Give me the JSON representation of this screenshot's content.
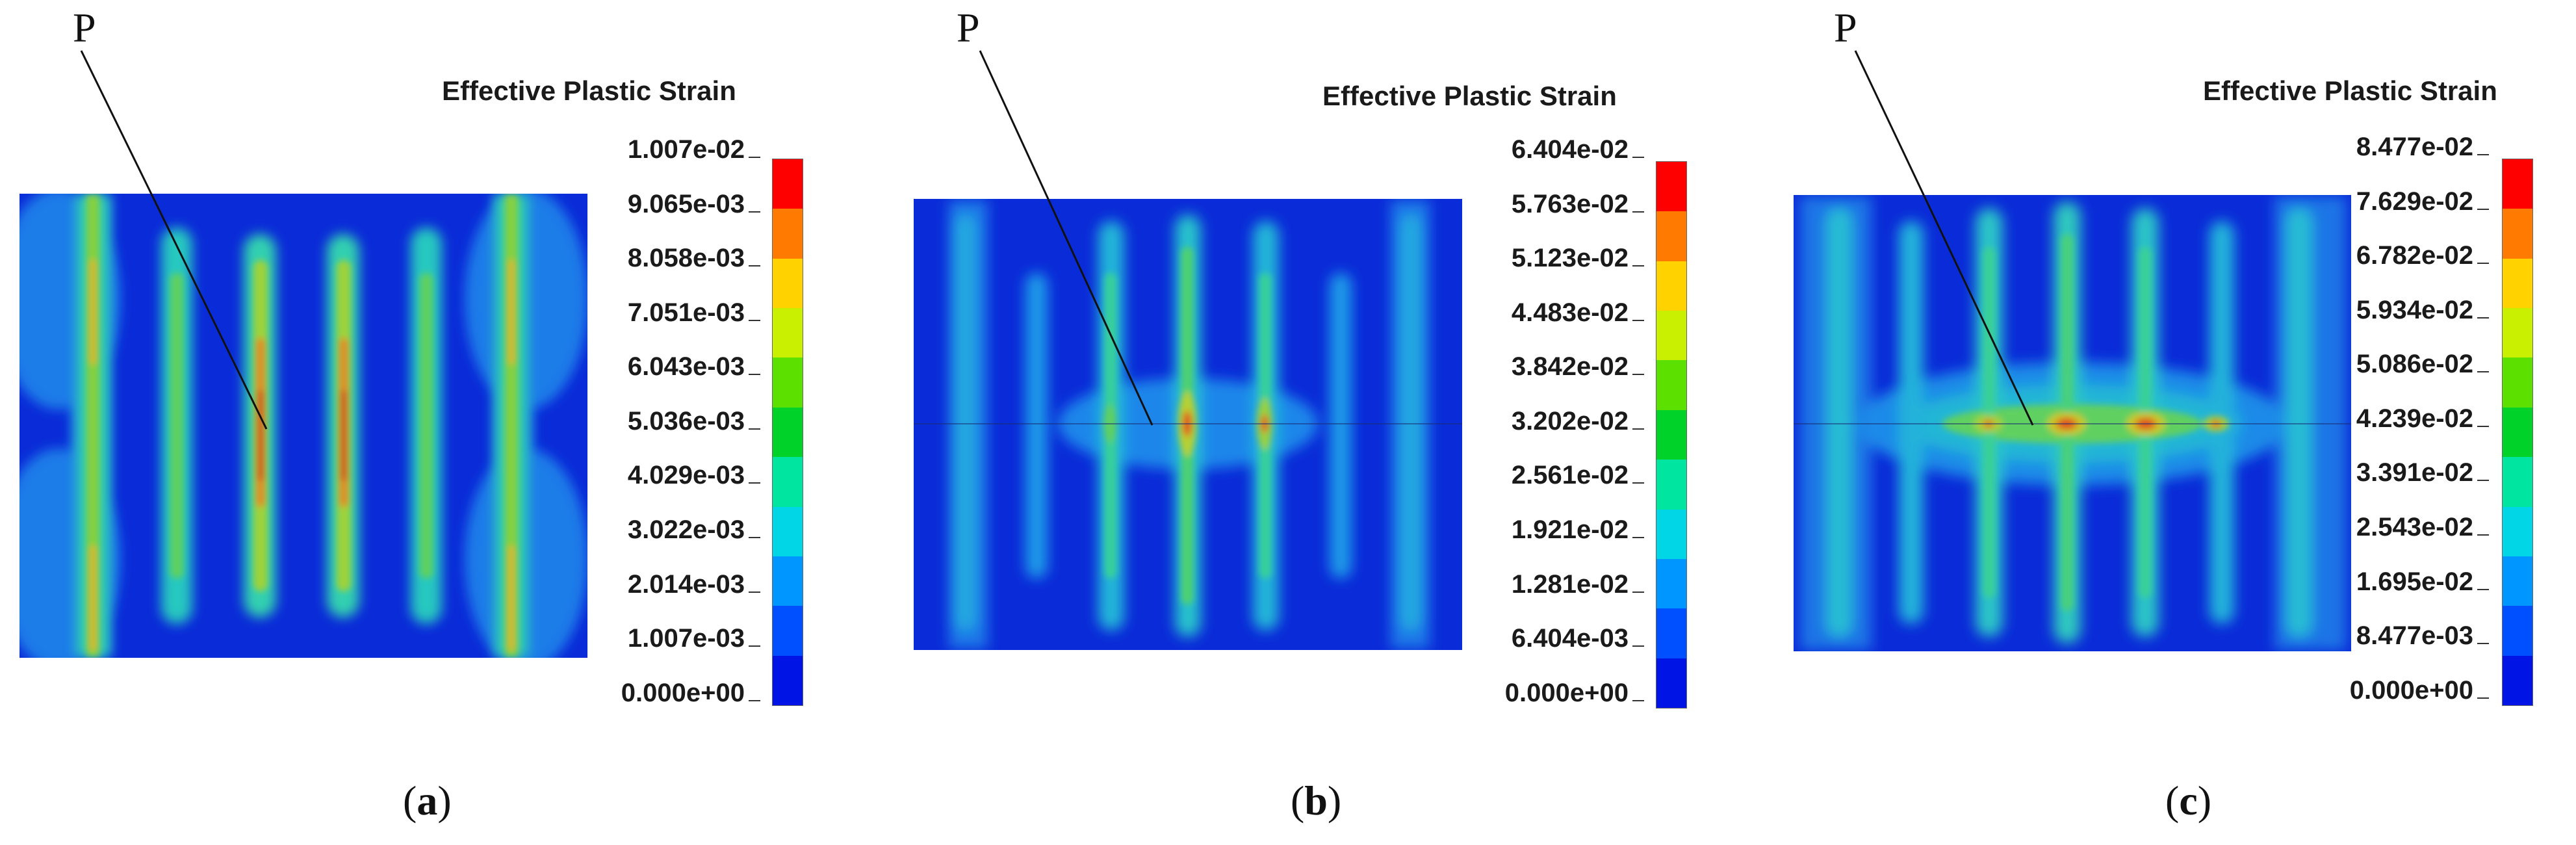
{
  "panels": [
    {
      "id": "a",
      "caption_open": "(",
      "caption_letter": "a",
      "caption_close": ")",
      "point_label": "P",
      "legend_title": "Effective Plastic Strain",
      "legend_values": [
        "1.007e-02",
        "9.065e-03",
        "8.058e-03",
        "7.051e-03",
        "6.043e-03",
        "5.036e-03",
        "4.029e-03",
        "3.022e-03",
        "2.014e-03",
        "1.007e-03",
        "0.000e+00"
      ]
    },
    {
      "id": "b",
      "caption_open": "(",
      "caption_letter": "b",
      "caption_close": ")",
      "point_label": "P",
      "legend_title": "Effective Plastic Strain",
      "legend_values": [
        "6.404e-02",
        "5.763e-02",
        "5.123e-02",
        "4.483e-02",
        "3.842e-02",
        "3.202e-02",
        "2.561e-02",
        "1.921e-02",
        "1.281e-02",
        "6.404e-03",
        "0.000e+00"
      ]
    },
    {
      "id": "c",
      "caption_open": "(",
      "caption_letter": "c",
      "caption_close": ")",
      "point_label": "P",
      "legend_title": "Effective Plastic Strain",
      "legend_values": [
        "8.477e-02",
        "7.629e-02",
        "6.782e-02",
        "5.934e-02",
        "5.086e-02",
        "4.239e-02",
        "3.391e-02",
        "2.543e-02",
        "1.695e-02",
        "8.477e-03",
        "0.000e+00"
      ]
    }
  ],
  "colormap": [
    "#ff0000",
    "#ff7a00",
    "#ffd200",
    "#c8f000",
    "#5ce000",
    "#00d22a",
    "#00e6a0",
    "#00d6e6",
    "#0096ff",
    "#0050ff",
    "#0014e6"
  ]
}
